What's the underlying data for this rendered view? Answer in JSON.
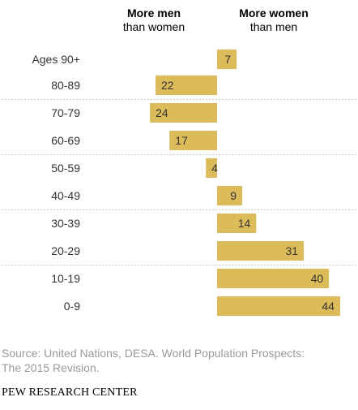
{
  "chart_data": {
    "type": "bar",
    "orientation": "horizontal-diverging",
    "left_header": [
      "More men",
      "than women"
    ],
    "right_header": [
      "More women",
      "than men"
    ],
    "categories": [
      "Ages 90+",
      "80-89",
      "70-79",
      "60-69",
      "50-59",
      "40-49",
      "30-39",
      "20-29",
      "10-19",
      "0-9"
    ],
    "values": [
      7,
      -22,
      -24,
      -17,
      -4,
      9,
      14,
      31,
      40,
      44
    ],
    "value_labels": [
      "7",
      "22",
      "24",
      "17",
      "4",
      "9",
      "14",
      "31",
      "40",
      "44"
    ],
    "bar_color": "#dcbb5a",
    "grid": false
  },
  "source": [
    "Source: United Nations, DESA. World Population Prospects:",
    "The 2015 Revision."
  ],
  "brand": "PEW RESEARCH CENTER"
}
